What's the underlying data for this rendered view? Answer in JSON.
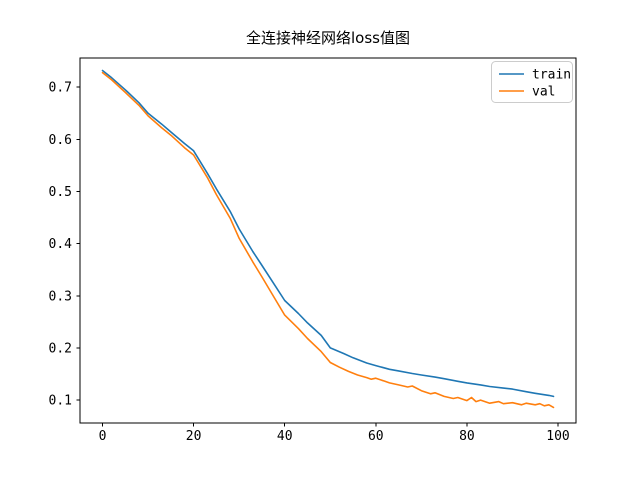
{
  "figure": {
    "background": "#ffffff"
  },
  "chart_data": {
    "type": "line",
    "title": "全连接神经网络loss值图",
    "xlabel": "",
    "ylabel": "",
    "xlim": [
      -4.95,
      103.95
    ],
    "ylim": [
      0.056,
      0.756
    ],
    "x_ticks": [
      0,
      20,
      40,
      60,
      80,
      100
    ],
    "y_ticks": [
      0.1,
      0.2,
      0.3,
      0.4,
      0.5,
      0.6,
      0.7
    ],
    "grid": false,
    "legend": {
      "position": "upper right",
      "entries": [
        "train",
        "val"
      ]
    },
    "series": [
      {
        "name": "train",
        "color": "#1f77b4",
        "x": [
          0,
          2,
          5,
          8,
          10,
          13,
          15,
          18,
          20,
          23,
          25,
          28,
          30,
          33,
          35,
          38,
          40,
          43,
          45,
          48,
          50,
          53,
          55,
          58,
          60,
          63,
          65,
          68,
          70,
          73,
          75,
          78,
          80,
          83,
          85,
          88,
          90,
          93,
          95,
          98,
          99
        ],
        "y": [
          0.732,
          0.718,
          0.695,
          0.67,
          0.65,
          0.629,
          0.614,
          0.592,
          0.578,
          0.535,
          0.505,
          0.462,
          0.428,
          0.385,
          0.358,
          0.318,
          0.291,
          0.266,
          0.248,
          0.224,
          0.2,
          0.189,
          0.181,
          0.171,
          0.166,
          0.159,
          0.156,
          0.151,
          0.148,
          0.144,
          0.141,
          0.136,
          0.133,
          0.129,
          0.126,
          0.123,
          0.121,
          0.116,
          0.113,
          0.109,
          0.107
        ]
      },
      {
        "name": "val",
        "color": "#ff7f0e",
        "x": [
          0,
          2,
          5,
          8,
          10,
          13,
          15,
          18,
          20,
          23,
          25,
          28,
          30,
          33,
          35,
          38,
          40,
          43,
          45,
          48,
          50,
          52,
          54,
          56,
          58,
          59,
          60,
          62,
          63,
          65,
          67,
          68,
          70,
          72,
          73,
          75,
          77,
          78,
          80,
          81,
          82,
          83,
          85,
          87,
          88,
          90,
          92,
          93,
          95,
          96,
          97,
          98,
          99
        ],
        "y": [
          0.728,
          0.714,
          0.69,
          0.665,
          0.645,
          0.622,
          0.608,
          0.584,
          0.57,
          0.527,
          0.494,
          0.449,
          0.41,
          0.365,
          0.336,
          0.292,
          0.263,
          0.237,
          0.218,
          0.193,
          0.172,
          0.163,
          0.155,
          0.148,
          0.143,
          0.14,
          0.142,
          0.136,
          0.133,
          0.129,
          0.125,
          0.127,
          0.118,
          0.112,
          0.114,
          0.107,
          0.103,
          0.105,
          0.099,
          0.105,
          0.097,
          0.1,
          0.094,
          0.097,
          0.093,
          0.095,
          0.091,
          0.094,
          0.091,
          0.093,
          0.089,
          0.091,
          0.086
        ]
      }
    ]
  }
}
